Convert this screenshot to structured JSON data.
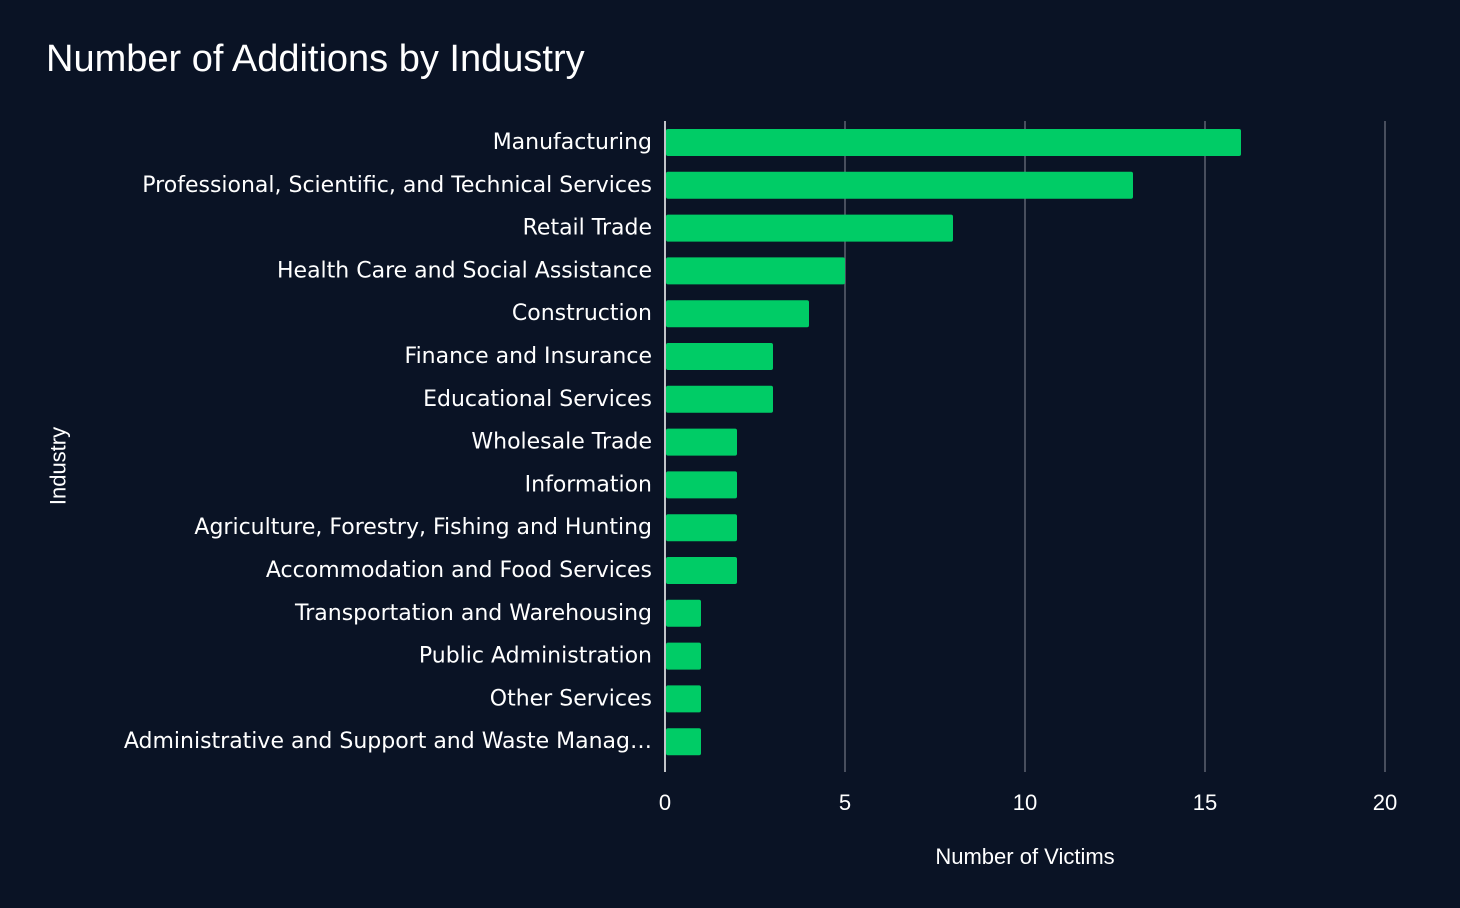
{
  "chart_data": {
    "type": "bar",
    "orientation": "horizontal",
    "title": "Number of Additions by Industry",
    "xlabel": "Number of Victims",
    "ylabel": "Industry",
    "xlim": [
      0,
      20
    ],
    "xticks": [
      0,
      5,
      10,
      15,
      20
    ],
    "grid": "vertical",
    "bar_color": "#00cc66",
    "background_color": "#0a1325",
    "gridline_color": "#5c6270",
    "categories": [
      "Manufacturing",
      "Professional, Scientific, and Technical Services",
      "Retail Trade",
      "Health Care and Social Assistance",
      "Construction",
      "Finance and Insurance",
      "Educational Services",
      "Wholesale Trade",
      "Information",
      "Agriculture, Forestry, Fishing and Hunting",
      "Accommodation and Food Services",
      "Transportation and Warehousing",
      "Public Administration",
      "Other Services",
      "Administrative and Support and Waste Manag…"
    ],
    "values": [
      16,
      13,
      8,
      5,
      4,
      3,
      3,
      2,
      2,
      2,
      2,
      1,
      1,
      1,
      1
    ]
  }
}
